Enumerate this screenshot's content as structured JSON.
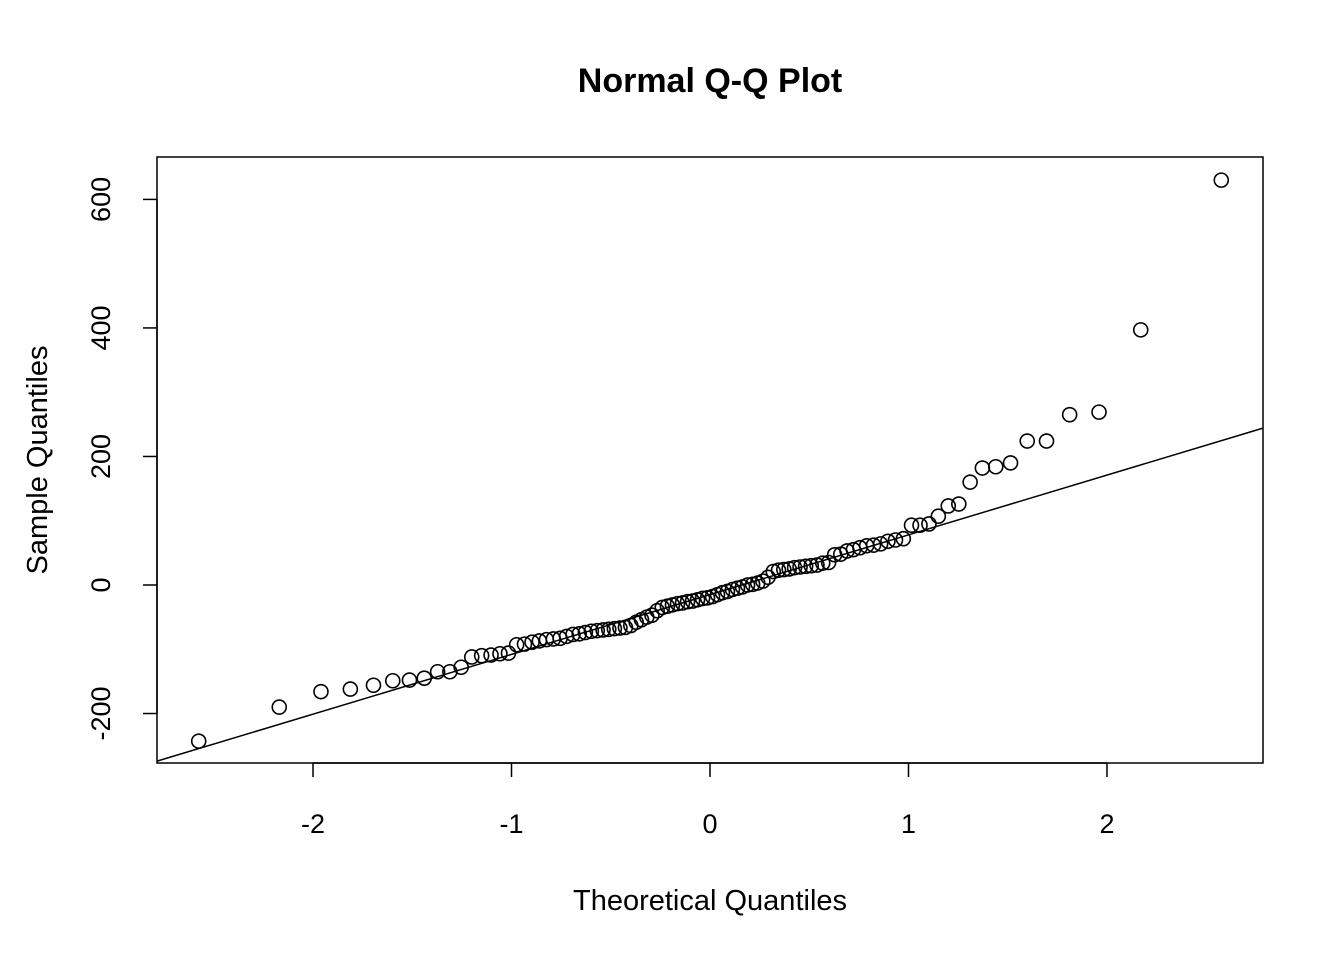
{
  "chart_data": {
    "type": "scatter",
    "title": "Normal Q-Q Plot",
    "xlabel": "Theoretical Quantiles",
    "ylabel": "Sample Quantiles",
    "xlim": [
      -2.786,
      2.786
    ],
    "ylim": [
      -277,
      666
    ],
    "xticks": [
      -2,
      -1,
      0,
      1,
      2
    ],
    "yticks": [
      -200,
      0,
      200,
      400,
      600
    ],
    "grid": false,
    "n": 100,
    "sample_quantiles": [
      -243,
      -190,
      -166,
      -162,
      -156,
      -149,
      -148,
      -145,
      -135,
      -135,
      -128,
      -112,
      -110,
      -109,
      -107,
      -106,
      -93,
      -92,
      -89,
      -87,
      -85,
      -84,
      -83,
      -80,
      -77,
      -76,
      -74,
      -72,
      -71,
      -70,
      -69,
      -68,
      -67,
      -66,
      -63,
      -58,
      -54,
      -50,
      -47,
      -40,
      -35,
      -33,
      -31,
      -29,
      -28,
      -26,
      -25,
      -23,
      -21,
      -20,
      -18,
      -15,
      -12,
      -10,
      -7,
      -5,
      -3,
      0,
      1,
      3,
      6,
      12,
      21,
      23,
      24,
      25,
      27,
      28,
      29,
      30,
      31,
      34,
      35,
      47,
      48,
      53,
      55,
      58,
      61,
      62,
      64,
      68,
      70,
      72,
      93,
      93,
      95,
      107,
      123,
      126,
      160,
      182,
      184,
      190,
      224,
      224,
      265,
      269,
      397,
      630
    ],
    "reference_line": {
      "intercept": -15,
      "slope": 93
    }
  }
}
